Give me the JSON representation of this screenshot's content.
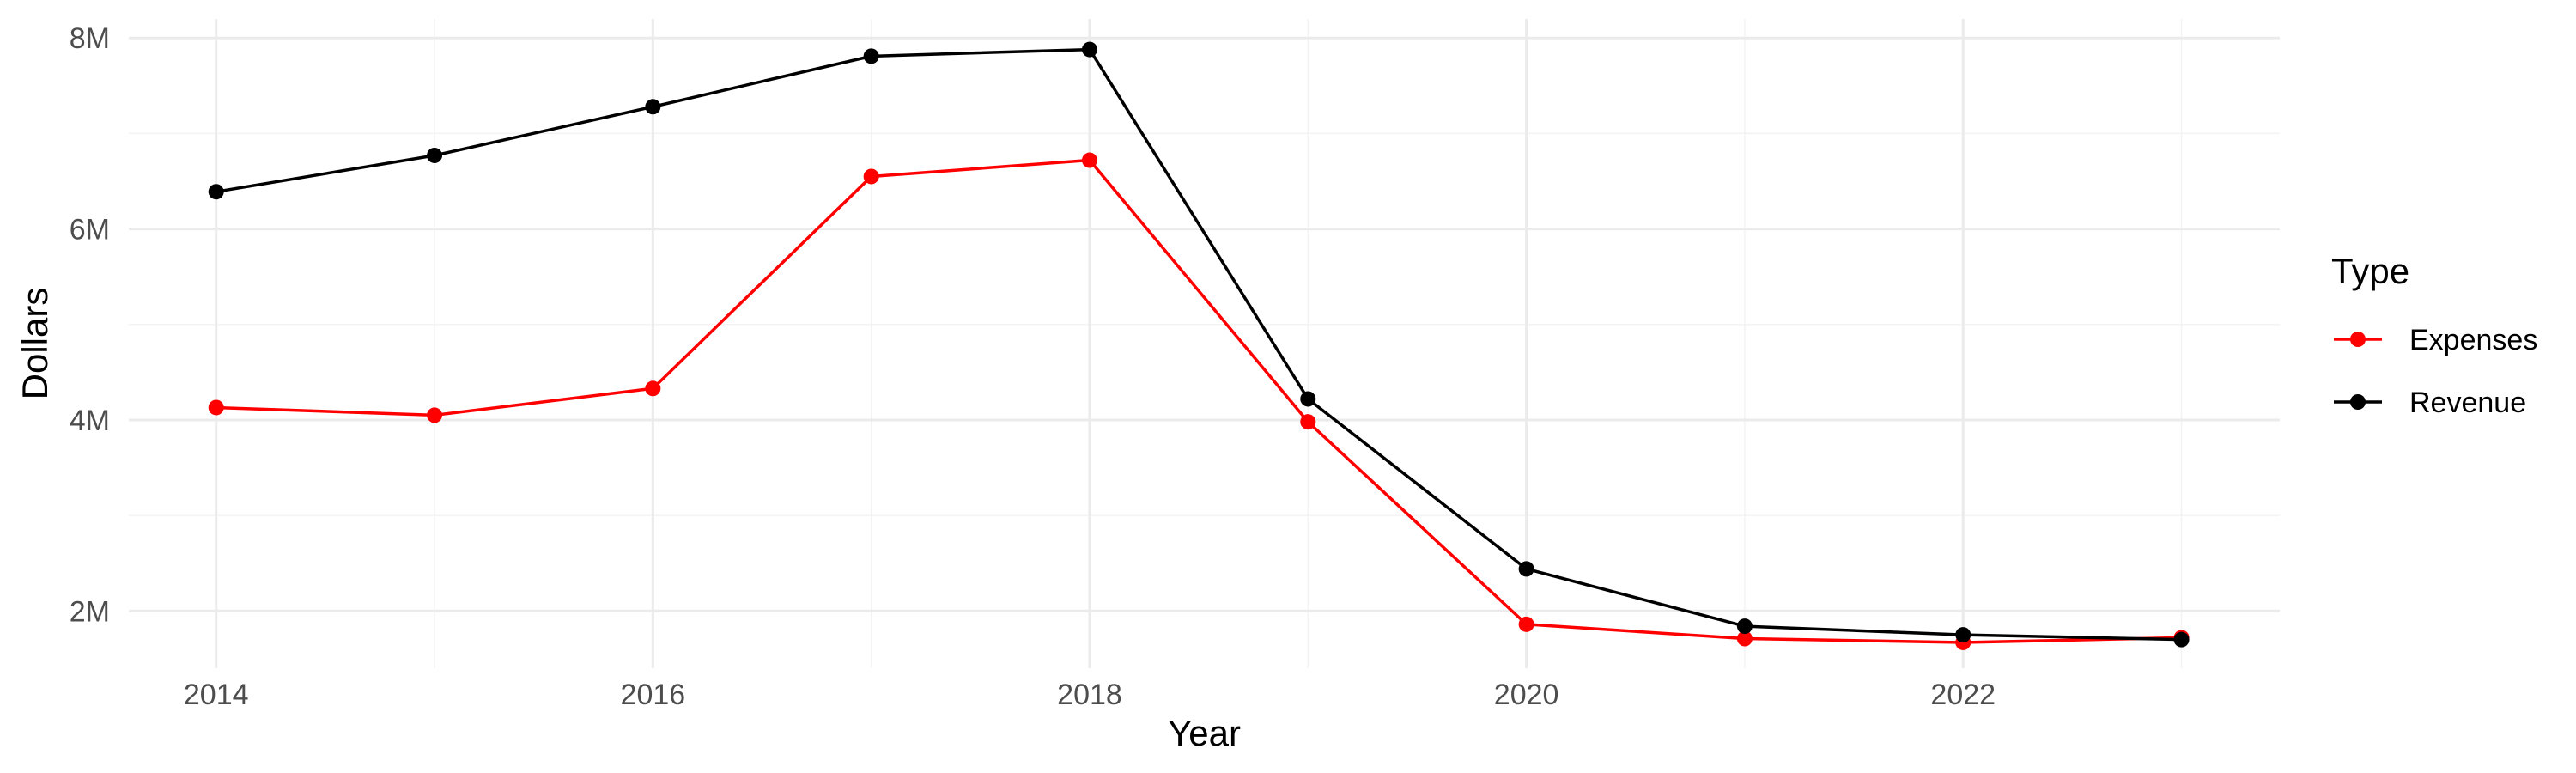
{
  "chart_data": {
    "type": "line",
    "title": "",
    "xlabel": "Year",
    "ylabel": "Dollars",
    "x": [
      2014,
      2015,
      2016,
      2017,
      2018,
      2019,
      2020,
      2021,
      2022,
      2023
    ],
    "xlim": [
      2013.6,
      2023.45
    ],
    "ylim": [
      1400000,
      8200000
    ],
    "xticks": [
      2014,
      2016,
      2018,
      2020,
      2022
    ],
    "xtick_labels": [
      "2014",
      "2016",
      "2018",
      "2020",
      "2022"
    ],
    "yticks": [
      2000000,
      4000000,
      6000000,
      8000000
    ],
    "ytick_labels": [
      "2M",
      "4M",
      "6M",
      "8M"
    ],
    "grid": true,
    "legend": {
      "title": "Type",
      "position": "right"
    },
    "series": [
      {
        "name": "Expenses",
        "color": "#ff0000",
        "values": [
          4130000,
          4050000,
          4330000,
          6550000,
          6720000,
          3980000,
          1860000,
          1710000,
          1670000,
          1720000
        ]
      },
      {
        "name": "Revenue",
        "color": "#000000",
        "values": [
          6390000,
          6770000,
          7280000,
          7810000,
          7880000,
          4220000,
          2440000,
          1840000,
          1750000,
          1700000
        ]
      }
    ]
  }
}
